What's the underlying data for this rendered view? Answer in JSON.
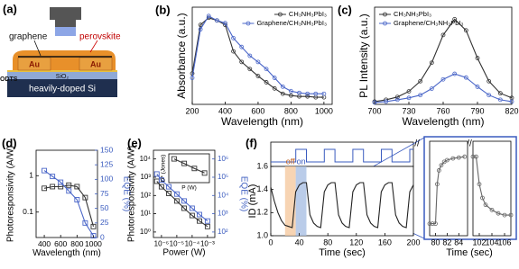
{
  "diagram": {
    "panel": "(a)",
    "labels": [
      "graphene",
      "perovskite",
      "Au",
      "Au",
      "ODTS",
      "SiO₂",
      "heavily-doped Si"
    ]
  },
  "chart_data": [
    {
      "type": "line",
      "panel": "(b)",
      "xlabel": "Wavelength (nm)",
      "ylabel": "Absorbance (a.u.)",
      "x": [
        200,
        250,
        300,
        350,
        400,
        450,
        500,
        550,
        600,
        650,
        700,
        750,
        800,
        850,
        900,
        950,
        1000
      ],
      "xlim": [
        200,
        1050
      ],
      "xticks": [
        200,
        400,
        600,
        800,
        1000
      ],
      "ylim": [
        0,
        1.1
      ],
      "legend": "upper right",
      "series": [
        {
          "name": "CH₃NH₃PbI₃",
          "color": "#333333",
          "marker": "circle",
          "values": [
            0.35,
            0.9,
            0.98,
            0.95,
            0.9,
            0.6,
            0.48,
            0.4,
            0.32,
            0.25,
            0.18,
            0.12,
            0.1,
            0.09,
            0.09,
            0.08,
            0.08
          ]
        },
        {
          "name": "Graphene/CH₃NH₃PbI₃",
          "color": "#4a66c8",
          "marker": "circle",
          "values": [
            0.3,
            0.85,
            1.0,
            0.95,
            0.92,
            0.75,
            0.65,
            0.55,
            0.48,
            0.4,
            0.3,
            0.2,
            0.15,
            0.13,
            0.12,
            0.12,
            0.12
          ]
        }
      ]
    },
    {
      "type": "line",
      "panel": "(c)",
      "xlabel": "Wavelength (nm)",
      "ylabel": "PL Intensity (a.u.)",
      "x": [
        700,
        710,
        720,
        730,
        740,
        750,
        760,
        770,
        780,
        790,
        800,
        810,
        820
      ],
      "xlim": [
        700,
        820
      ],
      "xticks": [
        700,
        730,
        760,
        790,
        820
      ],
      "ylim": [
        0,
        1.05
      ],
      "legend": "upper left",
      "series": [
        {
          "name": "CH₃NH₃PbI₃",
          "color": "#333333",
          "marker": "circle",
          "values": [
            0.03,
            0.05,
            0.08,
            0.14,
            0.25,
            0.45,
            0.75,
            0.92,
            0.8,
            0.5,
            0.25,
            0.12,
            0.07
          ]
        },
        {
          "name": "Graphene/CH₃NH₃PbI₃",
          "color": "#4a66c8",
          "marker": "circle",
          "values": [
            0.02,
            0.03,
            0.05,
            0.07,
            0.1,
            0.17,
            0.27,
            0.33,
            0.29,
            0.19,
            0.1,
            0.05,
            0.03
          ]
        }
      ]
    },
    {
      "type": "line",
      "panel": "(d)",
      "xlabel": "Wavelength (nm)",
      "ylabel": "Photoresponsivity (A/W)",
      "y2label": "EQE (%)",
      "y2color": "#3a5bbf",
      "x": [
        400,
        500,
        600,
        700,
        800,
        900,
        1000
      ],
      "xlim": [
        300,
        1050
      ],
      "xticks": [
        400,
        600,
        800,
        1000
      ],
      "ylog": true,
      "ylim": [
        0.02,
        5
      ],
      "yticks": [
        0.1,
        1
      ],
      "y2lim": [
        0,
        150
      ],
      "y2ticks": [
        0,
        25,
        50,
        75,
        100,
        125,
        150
      ],
      "series": [
        {
          "color": "#333333",
          "marker": "square",
          "values": [
            0.45,
            0.5,
            0.5,
            0.55,
            0.5,
            0.25,
            0.04
          ]
        },
        {
          "color": "#4a66c8",
          "marker": "square",
          "axis": "y2",
          "values": [
            115,
            105,
            95,
            80,
            65,
            25,
            3
          ]
        }
      ]
    },
    {
      "type": "line",
      "panel": "(e)",
      "xlabel": "Power (W)",
      "ylabel": "Photoresponsivity (A/W)",
      "y2label": "EQE (%)",
      "y2color": "#3a5bbf",
      "x": [
        5e-07,
        1e-06,
        3e-06,
        1e-05,
        3e-05,
        0.0001,
        0.0003,
        0.001
      ],
      "xlog": true,
      "xlim": [
        3e-07,
        0.003
      ],
      "xticks": [
        {
          "value": 1e-06,
          "label": "10⁻⁶"
        },
        {
          "value": 1e-05,
          "label": "10⁻⁵"
        },
        {
          "value": 0.0001,
          "label": "10⁻⁴"
        },
        {
          "value": 0.001,
          "label": "10⁻³"
        }
      ],
      "ylog": true,
      "ylim": [
        0.5,
        30000
      ],
      "yticks": [
        {
          "value": 1,
          "label": "10⁰"
        },
        {
          "value": 10,
          "label": "10¹"
        },
        {
          "value": 100,
          "label": "10²"
        },
        {
          "value": 1000,
          "label": "10³"
        },
        {
          "value": 10000,
          "label": "10⁴"
        }
      ],
      "y2log": true,
      "y2lim": [
        50,
        3000000
      ],
      "y2ticks": [
        {
          "value": 100,
          "label": "10²"
        },
        {
          "value": 1000,
          "label": "10³"
        },
        {
          "value": 10000,
          "label": "10⁴"
        },
        {
          "value": 100000,
          "label": "10⁵"
        },
        {
          "value": 1000000,
          "label": "10⁶"
        }
      ],
      "series": [
        {
          "color": "#333333",
          "marker": "square",
          "values": [
            600,
            300,
            130,
            50,
            20,
            8,
            4,
            2
          ]
        },
        {
          "color": "#4a66c8",
          "marker": "square",
          "axis": "y2",
          "values": [
            150000,
            70000,
            30000,
            12000,
            5000,
            2000,
            900,
            400
          ]
        }
      ]
    },
    {
      "type": "line",
      "xlabel": "P (W)",
      "ylabel": "D* (Jones)",
      "x": [
        1e-06,
        1e-05,
        0.0001,
        0.001
      ],
      "xlog": true,
      "xlim": [
        3e-07,
        0.003
      ],
      "ylog": true,
      "ylim": [
        100000000000.0,
        100000000000000.0
      ],
      "series": [
        {
          "color": "#333333",
          "marker": "square",
          "values": [
            30000000000000.0,
            10000000000000.0,
            3000000000000.0,
            1000000000000.0
          ]
        }
      ]
    },
    {
      "type": "line",
      "panel": "(f)",
      "xlabel": "Time (sec)",
      "ylabel": "ID (mA)",
      "x": [
        0,
        5,
        10,
        15,
        20,
        25,
        30,
        35,
        40,
        45,
        50,
        55,
        60,
        65,
        70,
        75,
        80,
        85,
        90,
        95,
        100,
        105,
        110,
        115,
        120,
        125,
        130,
        135,
        140,
        145,
        150,
        155,
        160,
        165,
        170,
        175,
        180,
        185,
        190,
        195,
        200
      ],
      "xlim": [
        0,
        200
      ],
      "xticks": [
        0,
        40,
        80,
        120,
        160,
        200
      ],
      "ylim": [
        1.0,
        1.6
      ],
      "yticks": [
        {
          "value": 1,
          "label": "1.0"
        },
        1.2,
        1.4,
        1.6
      ],
      "spans": [
        {
          "label": "off",
          "x": [
            20,
            35
          ],
          "color": "#f5c9a0"
        },
        {
          "label": "on",
          "x": [
            35,
            50
          ],
          "color": "#a9bfe3"
        }
      ],
      "series": [
        {
          "color": "#222222",
          "marker": "none",
          "values": [
            1.42,
            1.3,
            1.2,
            1.13,
            1.09,
            1.08,
            1.07,
            1.38,
            1.44,
            1.46,
            1.46,
            1.18,
            1.11,
            1.08,
            1.07,
            1.38,
            1.44,
            1.46,
            1.46,
            1.18,
            1.11,
            1.08,
            1.07,
            1.38,
            1.44,
            1.46,
            1.46,
            1.18,
            1.11,
            1.08,
            1.07,
            1.38,
            1.44,
            1.46,
            1.46,
            1.18,
            1.11,
            1.08,
            1.07,
            1.38,
            1.44
          ]
        }
      ]
    },
    {
      "type": "line",
      "xlabel": "Time (sec)",
      "x": [
        79,
        79.5,
        80,
        80.3,
        80.6,
        81,
        81.5,
        82,
        83,
        84,
        85
      ],
      "xlim": [
        79,
        85.5
      ],
      "xticks": [
        80,
        82,
        84
      ],
      "ylim": [
        1.0,
        1.55
      ],
      "series": [
        {
          "color": "#666666",
          "marker": "circle",
          "values": [
            1.07,
            1.07,
            1.07,
            1.3,
            1.38,
            1.41,
            1.43,
            1.44,
            1.45,
            1.455,
            1.46
          ]
        }
      ]
    },
    {
      "type": "line",
      "x": [
        101,
        101.5,
        102,
        102.5,
        103,
        104,
        105,
        106,
        107
      ],
      "xlim": [
        101,
        107
      ],
      "xticks": [
        102,
        104,
        106
      ],
      "ylim": [
        1.0,
        1.55
      ],
      "series": [
        {
          "color": "#666666",
          "marker": "circle",
          "values": [
            1.46,
            1.46,
            1.3,
            1.22,
            1.18,
            1.15,
            1.13,
            1.12,
            1.12
          ]
        }
      ]
    }
  ]
}
